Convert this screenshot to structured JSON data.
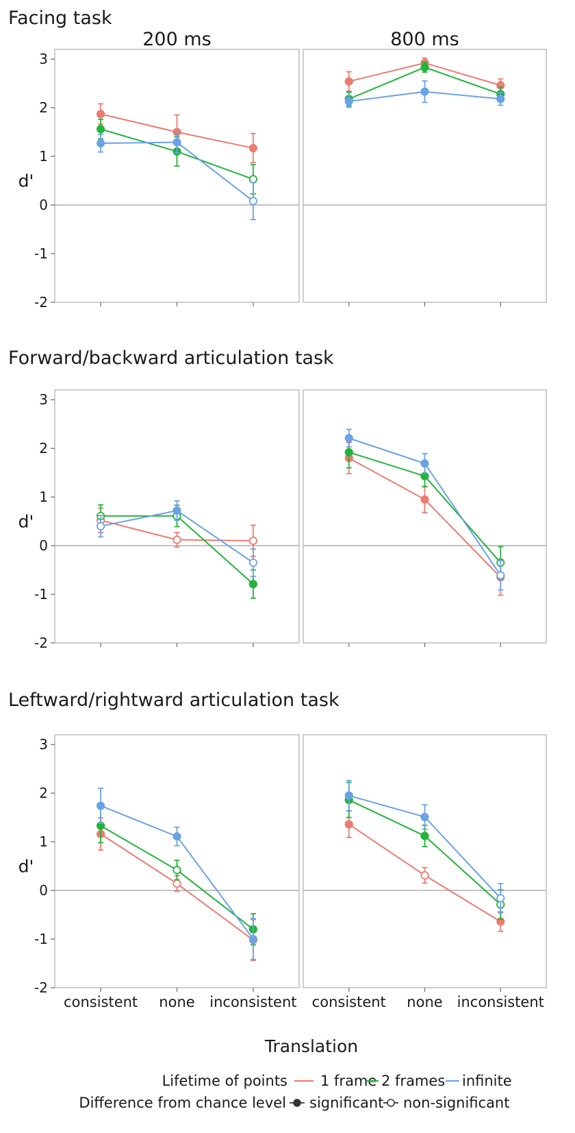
{
  "colors": {
    "1 frame": "#ec7b72",
    "2 frames": "#22b33a",
    "infinite": "#6aa2e6"
  },
  "legend": {
    "lifetime_title": "Lifetime of points",
    "lifetime_items": [
      "1 frame",
      "2 frames",
      "infinite"
    ],
    "significance_title": "Difference from chance level",
    "significance_items": [
      "significant",
      "non-significant"
    ]
  },
  "chart_data": [
    {
      "type": "line",
      "task": "Facing task",
      "panel": "200 ms",
      "categories": [
        "consistent",
        "none",
        "inconsistent"
      ],
      "ylabel": "d'",
      "ylim": [
        -2,
        3.2
      ],
      "yticks": [
        -2,
        -1,
        0,
        1,
        2,
        3
      ],
      "series": [
        {
          "name": "1 frame",
          "values": [
            1.87,
            1.5,
            1.17
          ],
          "errors": [
            0.21,
            0.35,
            0.3
          ],
          "significant": [
            true,
            true,
            true
          ]
        },
        {
          "name": "2 frames",
          "values": [
            1.56,
            1.1,
            0.53
          ],
          "errors": [
            0.2,
            0.3,
            0.3
          ],
          "significant": [
            true,
            true,
            false
          ]
        },
        {
          "name": "infinite",
          "values": [
            1.27,
            1.29,
            0.08
          ],
          "errors": [
            0.18,
            0.22,
            0.38
          ],
          "significant": [
            true,
            true,
            false
          ]
        }
      ]
    },
    {
      "type": "line",
      "task": "Facing task",
      "panel": "800 ms",
      "categories": [
        "consistent",
        "none",
        "inconsistent"
      ],
      "ylabel": "d'",
      "ylim": [
        -2,
        3.2
      ],
      "yticks": [
        -2,
        -1,
        0,
        1,
        2,
        3
      ],
      "series": [
        {
          "name": "1 frame",
          "values": [
            2.54,
            2.92,
            2.46
          ],
          "errors": [
            0.2,
            0.1,
            0.13
          ],
          "significant": [
            true,
            true,
            true
          ]
        },
        {
          "name": "2 frames",
          "values": [
            2.18,
            2.83,
            2.28
          ],
          "errors": [
            0.14,
            0.1,
            0.14
          ],
          "significant": [
            true,
            true,
            true
          ]
        },
        {
          "name": "infinite",
          "values": [
            2.13,
            2.33,
            2.18
          ],
          "errors": [
            0.12,
            0.22,
            0.13
          ],
          "significant": [
            true,
            true,
            true
          ]
        }
      ]
    },
    {
      "type": "line",
      "task": "Forward/backward articulation task",
      "panel": "200 ms",
      "categories": [
        "consistent",
        "none",
        "inconsistent"
      ],
      "ylabel": "d'",
      "ylim": [
        -2,
        3.2
      ],
      "yticks": [
        -2,
        -1,
        0,
        1,
        2,
        3
      ],
      "series": [
        {
          "name": "1 frame",
          "values": [
            0.52,
            0.12,
            0.1
          ],
          "errors": [
            0.25,
            0.15,
            0.32
          ],
          "significant": [
            false,
            false,
            false
          ]
        },
        {
          "name": "2 frames",
          "values": [
            0.61,
            0.61,
            -0.79
          ],
          "errors": [
            0.23,
            0.22,
            0.29
          ],
          "significant": [
            false,
            false,
            true
          ]
        },
        {
          "name": "infinite",
          "values": [
            0.4,
            0.72,
            -0.35
          ],
          "errors": [
            0.22,
            0.2,
            0.28
          ],
          "significant": [
            false,
            true,
            false
          ]
        }
      ]
    },
    {
      "type": "line",
      "task": "Forward/backward articulation task",
      "panel": "800 ms",
      "categories": [
        "consistent",
        "none",
        "inconsistent"
      ],
      "ylabel": "d'",
      "ylim": [
        -2,
        3.2
      ],
      "yticks": [
        -2,
        -1,
        0,
        1,
        2,
        3
      ],
      "series": [
        {
          "name": "1 frame",
          "values": [
            1.8,
            0.95,
            -0.65
          ],
          "errors": [
            0.32,
            0.27,
            0.37
          ],
          "significant": [
            true,
            true,
            true
          ]
        },
        {
          "name": "2 frames",
          "values": [
            1.92,
            1.43,
            -0.35
          ],
          "errors": [
            0.32,
            0.22,
            0.33
          ],
          "significant": [
            true,
            true,
            false
          ]
        },
        {
          "name": "infinite",
          "values": [
            2.21,
            1.69,
            -0.61
          ],
          "errors": [
            0.18,
            0.2,
            0.3
          ],
          "significant": [
            true,
            true,
            false
          ]
        }
      ]
    },
    {
      "type": "line",
      "task": "Leftward/rightward articulation task",
      "panel": "200 ms",
      "categories": [
        "consistent",
        "none",
        "inconsistent"
      ],
      "ylabel": "d'",
      "ylim": [
        -2,
        3.2
      ],
      "yticks": [
        -2,
        -1,
        0,
        1,
        2,
        3
      ],
      "xlabel": "Translation",
      "series": [
        {
          "name": "1 frame",
          "values": [
            1.16,
            0.14,
            -1.02
          ],
          "errors": [
            0.33,
            0.16,
            0.42
          ],
          "significant": [
            true,
            false,
            true
          ]
        },
        {
          "name": "2 frames",
          "values": [
            1.33,
            0.42,
            -0.8
          ],
          "errors": [
            0.35,
            0.2,
            0.32
          ],
          "significant": [
            true,
            false,
            true
          ]
        },
        {
          "name": "infinite",
          "values": [
            1.74,
            1.11,
            -1.0
          ],
          "errors": [
            0.36,
            0.19,
            0.42
          ],
          "significant": [
            true,
            true,
            true
          ]
        }
      ]
    },
    {
      "type": "line",
      "task": "Leftward/rightward articulation task",
      "panel": "800 ms",
      "categories": [
        "consistent",
        "none",
        "inconsistent"
      ],
      "ylabel": "d'",
      "ylim": [
        -2,
        3.2
      ],
      "yticks": [
        -2,
        -1,
        0,
        1,
        2,
        3
      ],
      "xlabel": "Translation",
      "series": [
        {
          "name": "1 frame",
          "values": [
            1.36,
            0.31,
            -0.64
          ],
          "errors": [
            0.27,
            0.16,
            0.2
          ],
          "significant": [
            true,
            false,
            true
          ]
        },
        {
          "name": "2 frames",
          "values": [
            1.86,
            1.12,
            -0.29
          ],
          "errors": [
            0.36,
            0.22,
            0.3
          ],
          "significant": [
            true,
            true,
            false
          ]
        },
        {
          "name": "infinite",
          "values": [
            1.95,
            1.51,
            -0.16
          ],
          "errors": [
            0.31,
            0.25,
            0.3
          ],
          "significant": [
            true,
            true,
            false
          ]
        }
      ]
    }
  ]
}
